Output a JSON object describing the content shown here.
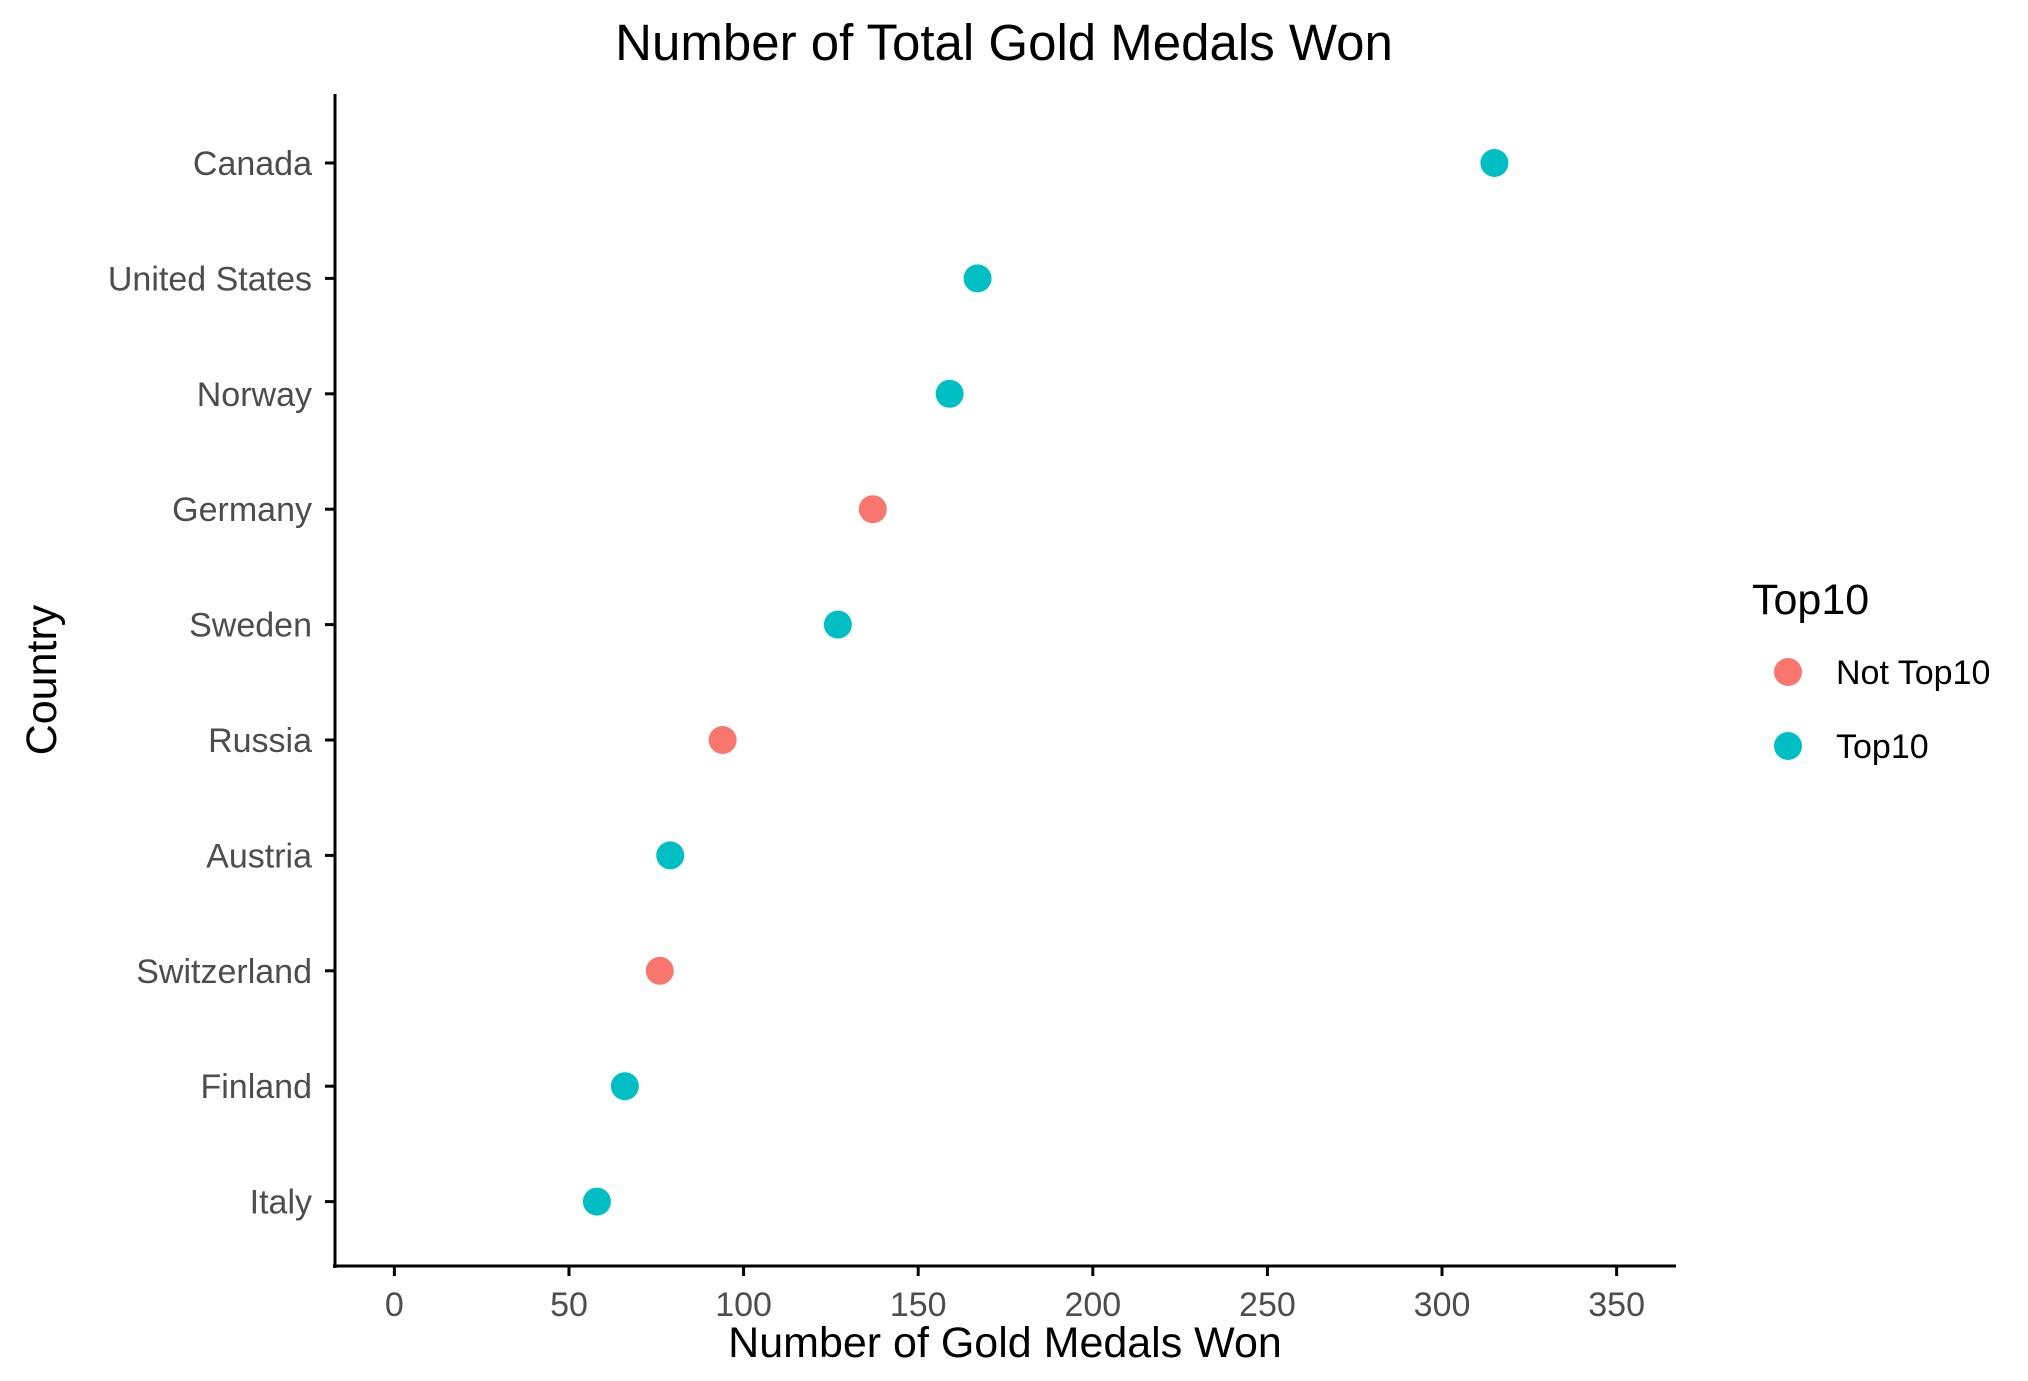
{
  "chart_data": {
    "type": "scatter",
    "title": "Number of Total Gold Medals Won",
    "xlabel": "Number of Gold Medals Won",
    "ylabel": "Country",
    "xlim": [
      -17,
      367
    ],
    "xticks": [
      0,
      50,
      100,
      150,
      200,
      250,
      300,
      350
    ],
    "grid": false,
    "legend": {
      "title": "Top10",
      "placement": "right",
      "entries": [
        {
          "label": "Not Top10",
          "color": "#F8766D"
        },
        {
          "label": "Top10",
          "color": "#00BFC4"
        }
      ]
    },
    "categories": [
      "Canada",
      "United States",
      "Norway",
      "Germany",
      "Sweden",
      "Russia",
      "Austria",
      "Switzerland",
      "Finland",
      "Italy"
    ],
    "points": [
      {
        "country": "Canada",
        "value": 315,
        "group": "Top10"
      },
      {
        "country": "United States",
        "value": 167,
        "group": "Top10"
      },
      {
        "country": "Norway",
        "value": 159,
        "group": "Top10"
      },
      {
        "country": "Germany",
        "value": 137,
        "group": "Not Top10"
      },
      {
        "country": "Sweden",
        "value": 127,
        "group": "Top10"
      },
      {
        "country": "Russia",
        "value": 94,
        "group": "Not Top10"
      },
      {
        "country": "Austria",
        "value": 79,
        "group": "Top10"
      },
      {
        "country": "Switzerland",
        "value": 76,
        "group": "Not Top10"
      },
      {
        "country": "Finland",
        "value": 66,
        "group": "Top10"
      },
      {
        "country": "Italy",
        "value": 58,
        "group": "Top10"
      }
    ]
  }
}
